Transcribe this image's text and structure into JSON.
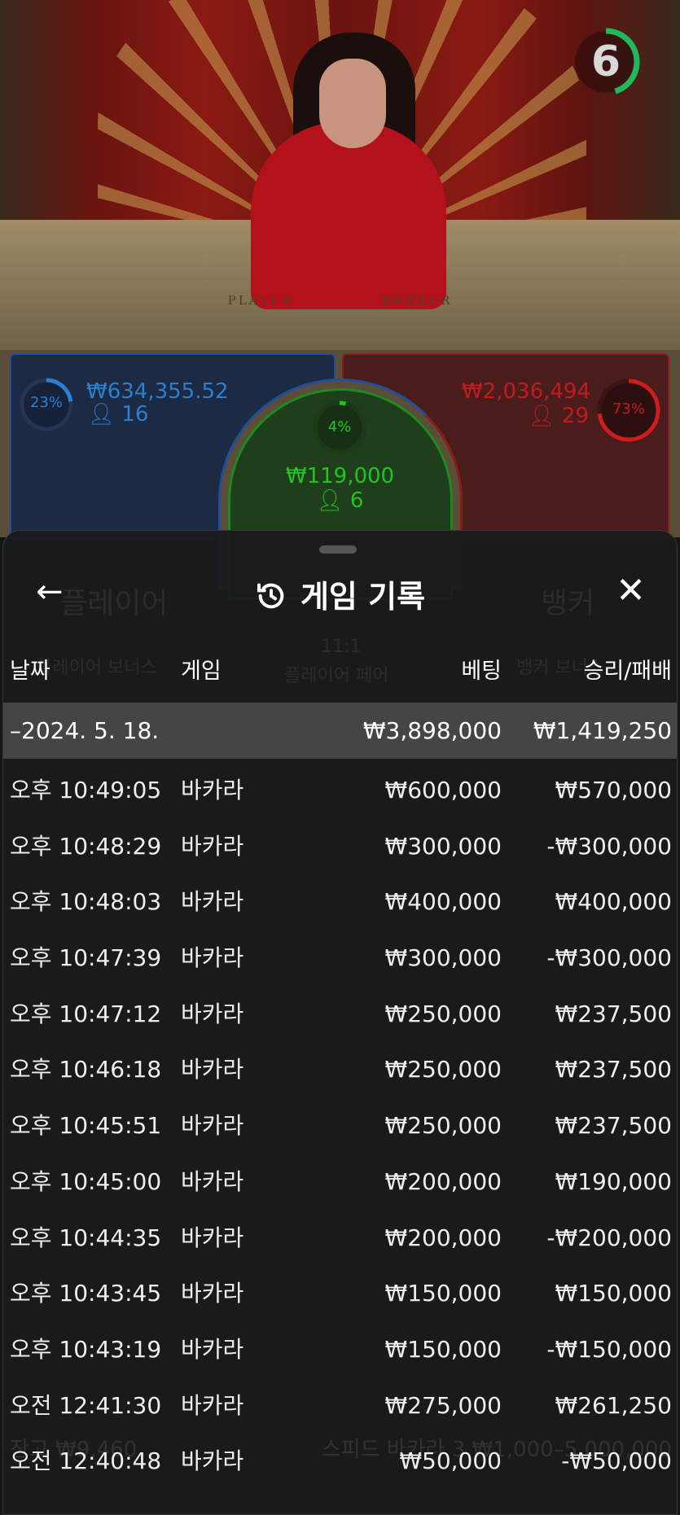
{
  "video": {
    "table_left": "PLAYER",
    "table_right": "BANKER",
    "timer": "6",
    "timer_fraction": 0.45,
    "timer_color": "#1fb85a"
  },
  "bets": {
    "player": {
      "percent": "23%",
      "percent_value": 23,
      "amount": "₩634,355.52",
      "players": "16",
      "color": "#2a7fd0"
    },
    "tie": {
      "percent": "4%",
      "percent_value": 4,
      "amount": "₩119,000",
      "players": "6",
      "color": "#22c322"
    },
    "banker": {
      "percent": "73%",
      "percent_value": 73,
      "amount": "₩2,036,494",
      "players": "29",
      "color": "#d01c1c"
    }
  },
  "background_ghost": {
    "player": "플레이어",
    "banker": "뱅커",
    "player_bonus": "플레이어 보너스",
    "pair_ratio": "11:1",
    "player_pair": "플레이어 페어",
    "banker_bonus": "뱅커 보너스",
    "balance_label": "잔고",
    "balance": "₩9,460",
    "table_name": "스피드 바카라 3",
    "limits": "₩1,000–5,000,000"
  },
  "sheet": {
    "title": "게임 기록",
    "back_icon": "arrow-left-icon",
    "close_icon": "close-icon",
    "title_icon": "history-icon",
    "columns": [
      "날짜",
      "게임",
      "베팅",
      "승리/패배"
    ],
    "summary": {
      "date": "–2024. 5. 18.",
      "bet": "₩3,898,000",
      "result": "₩1,419,250"
    },
    "rows": [
      {
        "time": "오후 10:49:05",
        "game": "바카라",
        "bet": "₩600,000",
        "result": "₩570,000"
      },
      {
        "time": "오후 10:48:29",
        "game": "바카라",
        "bet": "₩300,000",
        "result": "-₩300,000"
      },
      {
        "time": "오후 10:48:03",
        "game": "바카라",
        "bet": "₩400,000",
        "result": "₩400,000"
      },
      {
        "time": "오후 10:47:39",
        "game": "바카라",
        "bet": "₩300,000",
        "result": "-₩300,000"
      },
      {
        "time": "오후 10:47:12",
        "game": "바카라",
        "bet": "₩250,000",
        "result": "₩237,500"
      },
      {
        "time": "오후 10:46:18",
        "game": "바카라",
        "bet": "₩250,000",
        "result": "₩237,500"
      },
      {
        "time": "오후 10:45:51",
        "game": "바카라",
        "bet": "₩250,000",
        "result": "₩237,500"
      },
      {
        "time": "오후 10:45:00",
        "game": "바카라",
        "bet": "₩200,000",
        "result": "₩190,000"
      },
      {
        "time": "오후 10:44:35",
        "game": "바카라",
        "bet": "₩200,000",
        "result": "-₩200,000"
      },
      {
        "time": "오후 10:43:45",
        "game": "바카라",
        "bet": "₩150,000",
        "result": "₩150,000"
      },
      {
        "time": "오후 10:43:19",
        "game": "바카라",
        "bet": "₩150,000",
        "result": "-₩150,000"
      },
      {
        "time": "오전 12:41:30",
        "game": "바카라",
        "bet": "₩275,000",
        "result": "₩261,250"
      },
      {
        "time": "오전 12:40:48",
        "game": "바카라",
        "bet": "₩50,000",
        "result": "-₩50,000"
      }
    ]
  }
}
